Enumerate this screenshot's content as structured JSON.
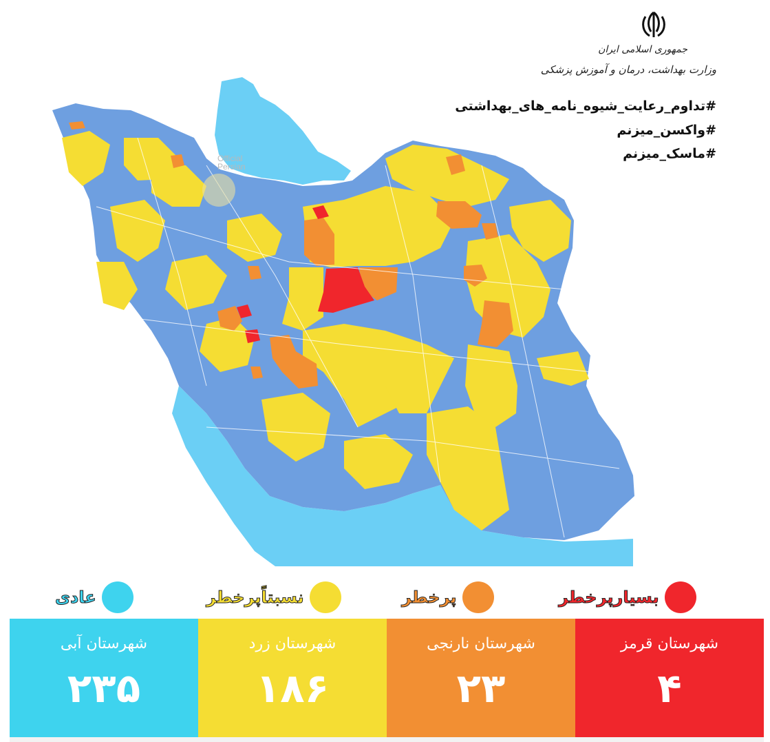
{
  "header": {
    "republic": "جمهوری اسلامی ایران",
    "ministry": "وزارت بهداشت، درمان و آموزش پزشکی",
    "hashtags": [
      "#تداوم_رعایت_شیوه_نامه_های_بهداشتی",
      "#واکسن_میزنم",
      "#ماسک_میزنم"
    ],
    "emblem_icon": "iran-emblem-icon"
  },
  "watermark": {
    "line1": "Official",
    "line2": "Persian"
  },
  "colors": {
    "blue": "#3ed3ee",
    "yellow": "#f5dd33",
    "orange": "#f28f33",
    "red": "#f0262c",
    "map_blue": "#6e9fe0",
    "sea": "#6bcff5"
  },
  "legend": [
    {
      "key": "red",
      "label": "بسیارپرخطر",
      "color": "#f0262c"
    },
    {
      "key": "orange",
      "label": "پرخطر",
      "color": "#f28f33"
    },
    {
      "key": "yellow",
      "label": "نسبتاًپرخطر",
      "color": "#f5dd33"
    },
    {
      "key": "blue",
      "label": "عادی",
      "color": "#3ed3ee"
    }
  ],
  "panels": [
    {
      "key": "red",
      "title": "شهرستان قرمز",
      "count": "۴",
      "color": "#f0262c"
    },
    {
      "key": "orange",
      "title": "شهرستان نارنجی",
      "count": "۲۳",
      "color": "#f28f33"
    },
    {
      "key": "yellow",
      "title": "شهرستان زرد",
      "count": "۱۸۶",
      "color": "#f5dd33"
    },
    {
      "key": "blue",
      "title": "شهرستان آبی",
      "count": "۲۳۵",
      "color": "#3ed3ee"
    }
  ]
}
